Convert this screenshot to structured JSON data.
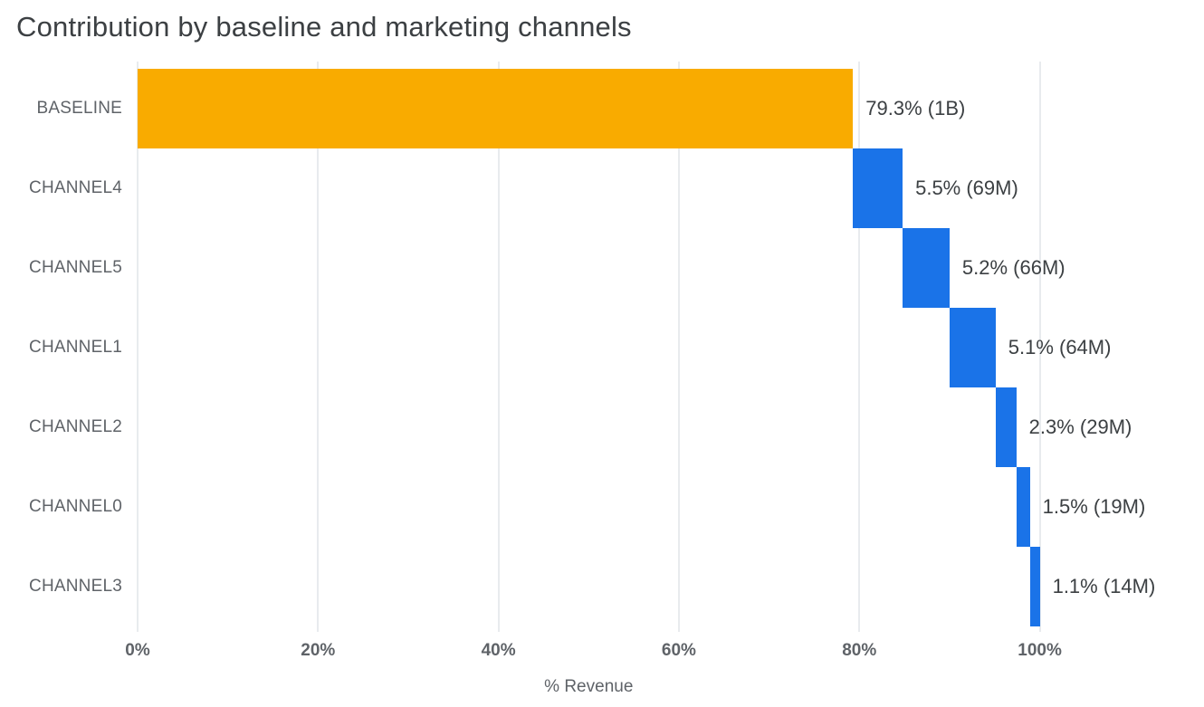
{
  "chart_data": {
    "type": "bar",
    "subtype": "waterfall",
    "orientation": "horizontal",
    "title": "Contribution by baseline and marketing channels",
    "xlabel": "% Revenue",
    "ylabel": "",
    "categories": [
      "BASELINE",
      "CHANNEL4",
      "CHANNEL5",
      "CHANNEL1",
      "CHANNEL2",
      "CHANNEL0",
      "CHANNEL3"
    ],
    "starts": [
      0,
      79.3,
      84.8,
      90.0,
      95.1,
      97.4,
      98.9
    ],
    "values": [
      79.3,
      5.5,
      5.2,
      5.1,
      2.3,
      1.5,
      1.1
    ],
    "value_labels": [
      "79.3% (1B)",
      "5.5% (69M)",
      "5.2% (66M)",
      "5.1% (64M)",
      "2.3% (29M)",
      "1.5% (19M)",
      "1.1% (14M)"
    ],
    "bar_colors": [
      "#F9AB00",
      "#1A73E8",
      "#1A73E8",
      "#1A73E8",
      "#1A73E8",
      "#1A73E8",
      "#1A73E8"
    ],
    "x_ticks": {
      "values": [
        0,
        20,
        40,
        60,
        80,
        100
      ],
      "labels": [
        "0%",
        "20%",
        "40%",
        "60%",
        "80%",
        "100%"
      ]
    },
    "xlim": [
      0,
      117
    ],
    "grid": "vertical-only",
    "legend": "none",
    "colors": {
      "baseline_bar": "#F9AB00",
      "channel_bar": "#1A73E8",
      "title_text": "#3C4043",
      "axis_text": "#5F6368",
      "gridline": "#E8EBEE"
    }
  }
}
